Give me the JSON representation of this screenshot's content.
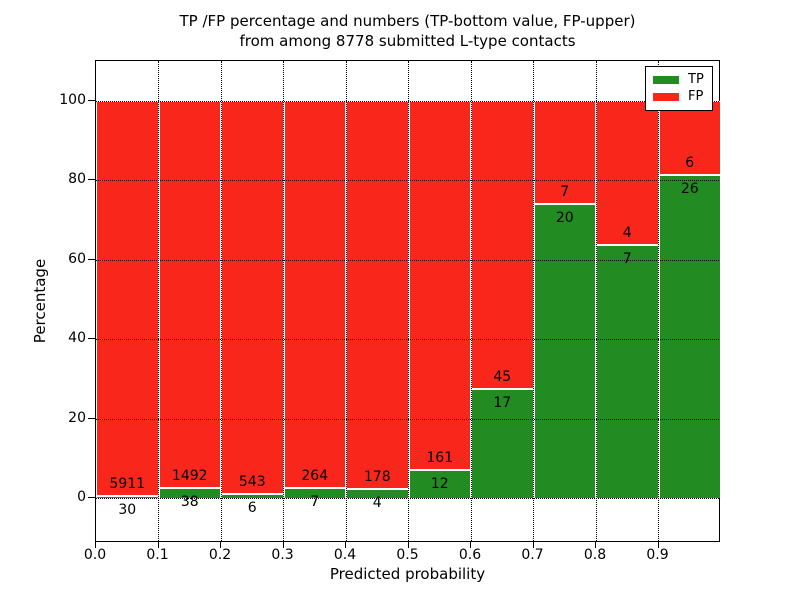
{
  "title": {
    "line1": "TP /FP percentage and numbers (TP-bottom value, FP-upper)",
    "line2": "from among 8778 submitted L-type contacts"
  },
  "axes": {
    "xlabel": "Predicted probability",
    "ylabel": "Percentage"
  },
  "legend": {
    "position": "upper-right",
    "items": [
      {
        "label": "TP",
        "color": "#228b22"
      },
      {
        "label": "FP",
        "color": "#f9261c"
      }
    ]
  },
  "chart_data": {
    "type": "bar",
    "subtype": "stacked-percentage",
    "title": "TP /FP percentage and numbers (TP-bottom value, FP-upper) from among 8778 submitted L-type contacts",
    "xlabel": "Predicted probability",
    "ylabel": "Percentage",
    "total_contacts": 8778,
    "bin_edges": [
      0.0,
      0.1,
      0.2,
      0.3,
      0.4,
      0.5,
      0.6,
      0.7,
      0.8,
      0.9,
      1.0
    ],
    "categories": [
      "0.0-0.1",
      "0.1-0.2",
      "0.2-0.3",
      "0.3-0.4",
      "0.4-0.5",
      "0.5-0.6",
      "0.6-0.7",
      "0.7-0.8",
      "0.8-0.9",
      "0.9-1.0"
    ],
    "series": [
      {
        "name": "TP",
        "color": "#228b22",
        "counts": [
          30,
          38,
          6,
          7,
          4,
          12,
          17,
          20,
          7,
          26
        ]
      },
      {
        "name": "FP",
        "color": "#f9261c",
        "counts": [
          5911,
          1492,
          543,
          264,
          178,
          161,
          45,
          7,
          4,
          6
        ]
      }
    ],
    "tp_percent_approx": [
      0.5,
      2.5,
      1.1,
      2.6,
      2.2,
      6.9,
      27.4,
      74.1,
      63.6,
      81.3
    ],
    "xticks": [
      "0.0",
      "0.1",
      "0.2",
      "0.3",
      "0.4",
      "0.5",
      "0.6",
      "0.7",
      "0.8",
      "0.9"
    ],
    "yticks": [
      0,
      20,
      40,
      60,
      80,
      100
    ],
    "xlim": [
      0.0,
      1.0
    ],
    "ylim": [
      -11.3,
      110.1
    ],
    "grid": {
      "style": "dotted",
      "color": "#000000",
      "above_bars": true
    },
    "bar_edge_color": "#ffffff",
    "legend_position": "upper-right"
  }
}
